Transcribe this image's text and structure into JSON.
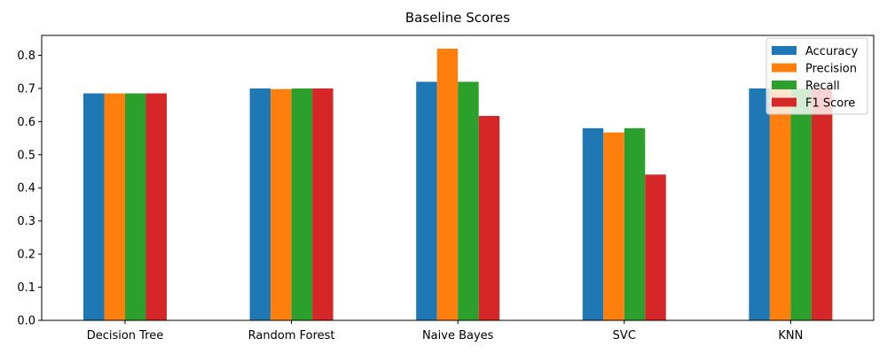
{
  "chart_data": {
    "type": "bar",
    "title": "Baseline Scores",
    "xlabel": "",
    "ylabel": "",
    "categories": [
      "Decision Tree",
      "Random Forest",
      "Naive Bayes",
      "SVC",
      "KNN"
    ],
    "ylim": [
      0,
      0.86
    ],
    "yticks": [
      "0.0",
      "0.1",
      "0.2",
      "0.3",
      "0.4",
      "0.5",
      "0.6",
      "0.7",
      "0.8"
    ],
    "grid": false,
    "legend_position": "top-right",
    "series": [
      {
        "name": "Accuracy",
        "color": "#1f77b4",
        "values": [
          0.685,
          0.7,
          0.72,
          0.58,
          0.7
        ]
      },
      {
        "name": "Precision",
        "color": "#ff7f0e",
        "values": [
          0.685,
          0.698,
          0.82,
          0.567,
          0.7
        ]
      },
      {
        "name": "Recall",
        "color": "#2ca02c",
        "values": [
          0.685,
          0.7,
          0.72,
          0.58,
          0.7
        ]
      },
      {
        "name": "F1 Score",
        "color": "#d62728",
        "values": [
          0.685,
          0.7,
          0.617,
          0.44,
          0.7
        ]
      }
    ]
  }
}
